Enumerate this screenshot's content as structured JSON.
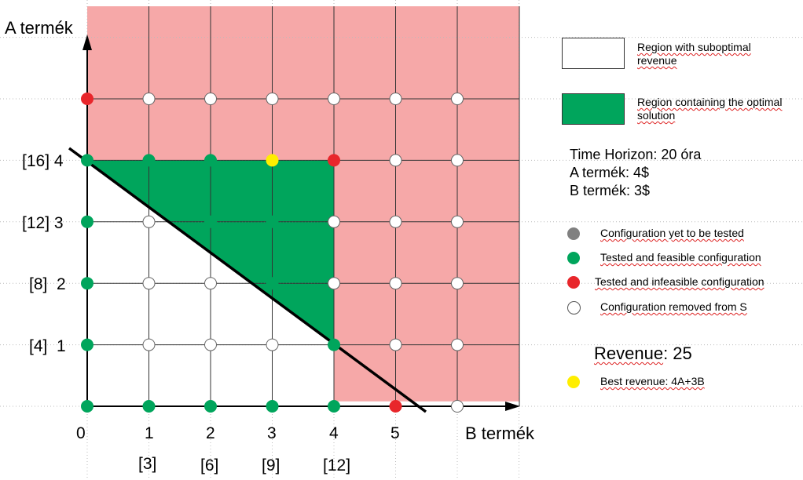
{
  "axes": {
    "y_title": "A termék",
    "x_title": "B termék",
    "x_ticks": [
      "0",
      "1",
      "2",
      "3",
      "4",
      "5"
    ],
    "x_revenue_ticks": [
      "[3]",
      "[6]",
      "[9]",
      "[12]"
    ],
    "y_ticks": [
      "[4]  1",
      "[8]  2",
      "[12] 3",
      "[16] 4"
    ]
  },
  "legend_regions": [
    {
      "label": "Region with suboptimal revenue",
      "color": "#ffffff"
    },
    {
      "label": "Region containing the optimal solution",
      "color": "#00a55c"
    }
  ],
  "info": {
    "line1": "Time Horizon: 20 óra",
    "line2": "A termék: 4$",
    "line3": "B termék: 3$"
  },
  "legend_dots": [
    {
      "label": "Configuration yet to be tested",
      "color": "#808080"
    },
    {
      "label": "Tested and feasible configuration",
      "color": "#00a55c"
    },
    {
      "label": "Tested and infeasible configuration",
      "color": "#e8262b"
    },
    {
      "label": "Configuration removed from S",
      "color": "#ffffff"
    }
  ],
  "revenue": {
    "word": "Revenue",
    "value": ": 25"
  },
  "best": {
    "label": "Best revenue: 4A+3B",
    "color": "#ffee00"
  },
  "colors": {
    "infeasible_region": "#f6a8a8",
    "optimal_region": "#00a55c",
    "green": "#00a55c",
    "red": "#e8262b",
    "white": "#ffffff",
    "yellow": "#ffee00"
  },
  "points": [
    {
      "b": 0,
      "a": 0,
      "state": "green"
    },
    {
      "b": 1,
      "a": 0,
      "state": "green"
    },
    {
      "b": 2,
      "a": 0,
      "state": "green"
    },
    {
      "b": 3,
      "a": 0,
      "state": "green"
    },
    {
      "b": 4,
      "a": 0,
      "state": "green"
    },
    {
      "b": 5,
      "a": 0,
      "state": "red"
    },
    {
      "b": 6,
      "a": 0,
      "state": "white"
    },
    {
      "b": 0,
      "a": 1,
      "state": "green"
    },
    {
      "b": 1,
      "a": 1,
      "state": "white"
    },
    {
      "b": 2,
      "a": 1,
      "state": "white"
    },
    {
      "b": 3,
      "a": 1,
      "state": "white"
    },
    {
      "b": 4,
      "a": 1,
      "state": "green"
    },
    {
      "b": 5,
      "a": 1,
      "state": "white"
    },
    {
      "b": 6,
      "a": 1,
      "state": "white"
    },
    {
      "b": 0,
      "a": 2,
      "state": "green"
    },
    {
      "b": 1,
      "a": 2,
      "state": "white"
    },
    {
      "b": 2,
      "a": 2,
      "state": "white"
    },
    {
      "b": 3,
      "a": 2,
      "state": "green"
    },
    {
      "b": 4,
      "a": 2,
      "state": "white"
    },
    {
      "b": 5,
      "a": 2,
      "state": "white"
    },
    {
      "b": 6,
      "a": 2,
      "state": "white"
    },
    {
      "b": 0,
      "a": 3,
      "state": "green"
    },
    {
      "b": 1,
      "a": 3,
      "state": "white"
    },
    {
      "b": 2,
      "a": 3,
      "state": "green"
    },
    {
      "b": 3,
      "a": 3,
      "state": "green"
    },
    {
      "b": 4,
      "a": 3,
      "state": "white"
    },
    {
      "b": 5,
      "a": 3,
      "state": "white"
    },
    {
      "b": 6,
      "a": 3,
      "state": "white"
    },
    {
      "b": 0,
      "a": 4,
      "state": "green"
    },
    {
      "b": 1,
      "a": 4,
      "state": "green"
    },
    {
      "b": 2,
      "a": 4,
      "state": "green"
    },
    {
      "b": 3,
      "a": 4,
      "state": "yellow"
    },
    {
      "b": 4,
      "a": 4,
      "state": "red"
    },
    {
      "b": 5,
      "a": 4,
      "state": "white"
    },
    {
      "b": 6,
      "a": 4,
      "state": "white"
    },
    {
      "b": 0,
      "a": 5,
      "state": "red"
    },
    {
      "b": 1,
      "a": 5,
      "state": "white"
    },
    {
      "b": 2,
      "a": 5,
      "state": "white"
    },
    {
      "b": 3,
      "a": 5,
      "state": "white"
    },
    {
      "b": 4,
      "a": 5,
      "state": "white"
    },
    {
      "b": 5,
      "a": 5,
      "state": "white"
    },
    {
      "b": 6,
      "a": 5,
      "state": "white"
    }
  ]
}
